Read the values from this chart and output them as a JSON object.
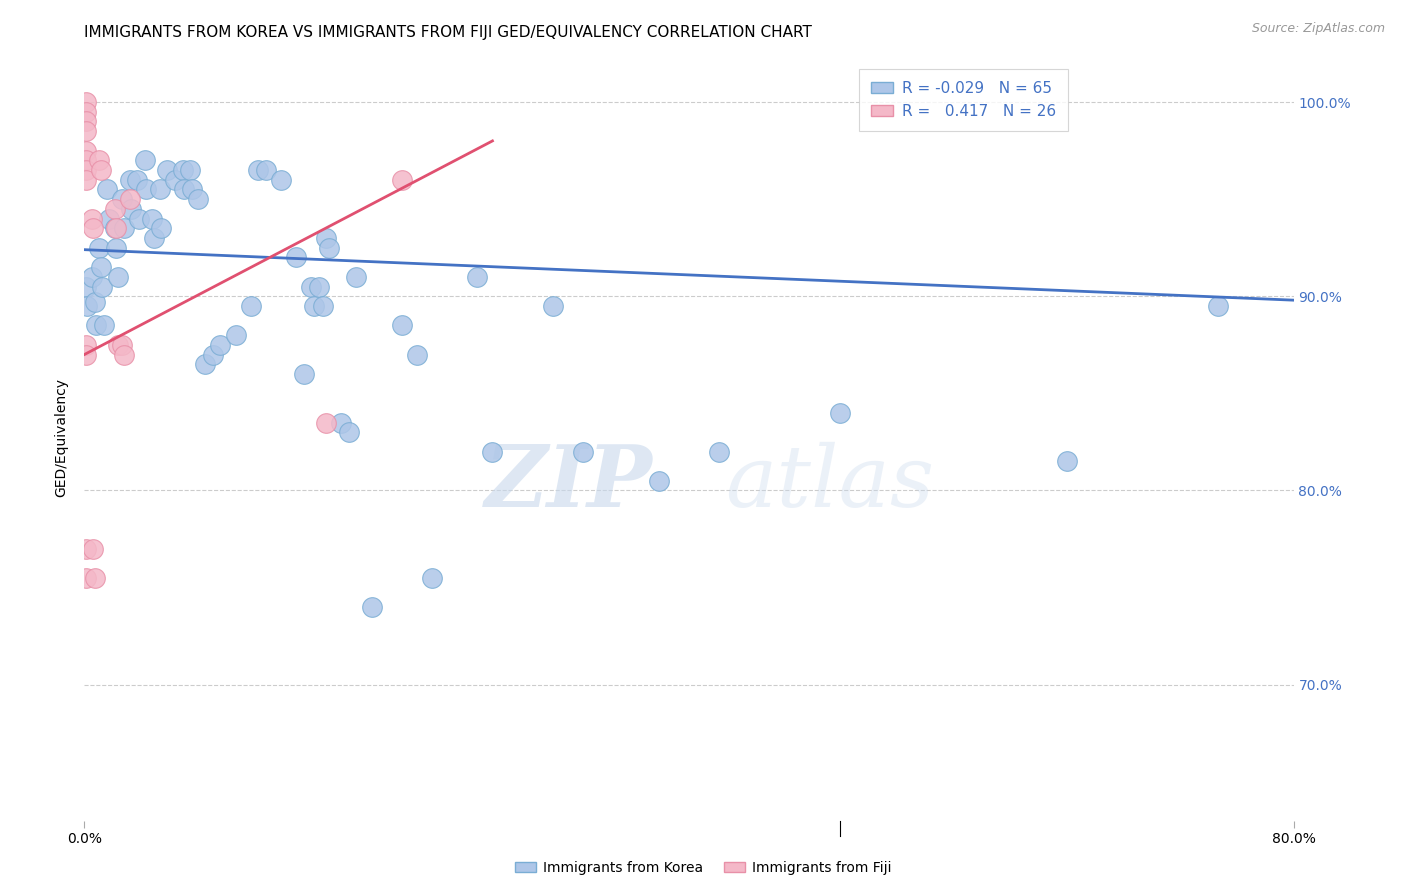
{
  "title": "IMMIGRANTS FROM KOREA VS IMMIGRANTS FROM FIJI GED/EQUIVALENCY CORRELATION CHART",
  "source": "Source: ZipAtlas.com",
  "ylabel": "GED/Equivalency",
  "x_min": 0.0,
  "x_max": 0.8,
  "y_min": 0.63,
  "y_max": 1.025,
  "y_ticks": [
    0.7,
    0.8,
    0.9,
    1.0
  ],
  "y_tick_labels": [
    "70.0%",
    "80.0%",
    "90.0%",
    "100.0%"
  ],
  "x_ticks": [
    0.0,
    0.8
  ],
  "x_tick_labels": [
    "0.0%",
    "80.0%"
  ],
  "legend_entries": [
    {
      "label": "Immigrants from Korea",
      "color": "#aec6e8",
      "R": "-0.029",
      "N": "65"
    },
    {
      "label": "Immigrants from Fiji",
      "color": "#f4b8c8",
      "R": " 0.417",
      "N": "26"
    }
  ],
  "korea_scatter_x": [
    0.001,
    0.002,
    0.005,
    0.007,
    0.008,
    0.01,
    0.011,
    0.012,
    0.013,
    0.015,
    0.016,
    0.02,
    0.021,
    0.022,
    0.025,
    0.026,
    0.03,
    0.031,
    0.035,
    0.036,
    0.04,
    0.041,
    0.045,
    0.046,
    0.05,
    0.051,
    0.055,
    0.06,
    0.065,
    0.066,
    0.07,
    0.071,
    0.075,
    0.08,
    0.085,
    0.09,
    0.1,
    0.11,
    0.115,
    0.12,
    0.13,
    0.14,
    0.145,
    0.15,
    0.152,
    0.155,
    0.158,
    0.16,
    0.162,
    0.17,
    0.175,
    0.18,
    0.19,
    0.21,
    0.22,
    0.23,
    0.26,
    0.27,
    0.31,
    0.33,
    0.38,
    0.42,
    0.5,
    0.65,
    0.75
  ],
  "korea_scatter_y": [
    0.905,
    0.895,
    0.91,
    0.897,
    0.885,
    0.925,
    0.915,
    0.905,
    0.885,
    0.955,
    0.94,
    0.935,
    0.925,
    0.91,
    0.95,
    0.935,
    0.96,
    0.945,
    0.96,
    0.94,
    0.97,
    0.955,
    0.94,
    0.93,
    0.955,
    0.935,
    0.965,
    0.96,
    0.965,
    0.955,
    0.965,
    0.955,
    0.95,
    0.865,
    0.87,
    0.875,
    0.88,
    0.895,
    0.965,
    0.965,
    0.96,
    0.92,
    0.86,
    0.905,
    0.895,
    0.905,
    0.895,
    0.93,
    0.925,
    0.835,
    0.83,
    0.91,
    0.74,
    0.885,
    0.87,
    0.755,
    0.91,
    0.82,
    0.895,
    0.82,
    0.805,
    0.82,
    0.84,
    0.815,
    0.895
  ],
  "fiji_scatter_x": [
    0.001,
    0.001,
    0.001,
    0.001,
    0.001,
    0.001,
    0.001,
    0.001,
    0.001,
    0.001,
    0.001,
    0.001,
    0.005,
    0.006,
    0.006,
    0.007,
    0.01,
    0.011,
    0.02,
    0.021,
    0.022,
    0.025,
    0.026,
    0.03,
    0.16,
    0.21
  ],
  "fiji_scatter_y": [
    1.0,
    0.995,
    0.99,
    0.985,
    0.975,
    0.97,
    0.965,
    0.96,
    0.875,
    0.87,
    0.77,
    0.755,
    0.94,
    0.935,
    0.77,
    0.755,
    0.97,
    0.965,
    0.945,
    0.935,
    0.875,
    0.875,
    0.87,
    0.95,
    0.835,
    0.96
  ],
  "korea_line_x": [
    0.0,
    0.8
  ],
  "korea_line_y": [
    0.924,
    0.898
  ],
  "fiji_line_x": [
    0.0,
    0.27
  ],
  "fiji_line_y": [
    0.87,
    0.98
  ],
  "watermark_zip": "ZIP",
  "watermark_atlas": "atlas",
  "background_color": "#ffffff",
  "grid_color": "#cccccc",
  "scatter_korea_color": "#aec6e8",
  "scatter_fiji_color": "#f4b8c8",
  "scatter_korea_edge": "#7aadd4",
  "scatter_fiji_edge": "#e890a8",
  "line_korea_color": "#4472c4",
  "line_fiji_color": "#e05070",
  "title_fontsize": 11,
  "axis_label_fontsize": 10,
  "tick_fontsize": 10,
  "legend_fontsize": 11,
  "right_tick_color": "#4472c4"
}
